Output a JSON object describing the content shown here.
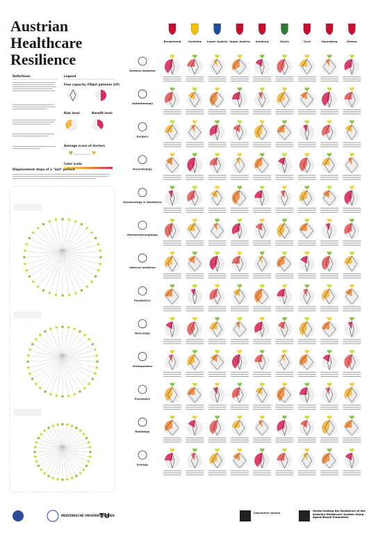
{
  "header": {
    "title": [
      "Austrian",
      "Healthcare",
      "Resilience"
    ]
  },
  "states": [
    "Burgenland",
    "Carinthia",
    "Lower Austria",
    "Upper Austria",
    "Salzburg",
    "Styria",
    "Tyrol",
    "Vorarlberg",
    "Vienna"
  ],
  "specialties": [
    "General medicine",
    "Ophtalmology",
    "Surgery",
    "Dermatology",
    "Gynaecology & Obstetrics",
    "Otorhinolaryngology",
    "Internal medicine",
    "Paediatrics",
    "Neurology",
    "Orthopaedics",
    "Psychiatry",
    "Radiology",
    "Urology"
  ],
  "sidebar": {
    "definitions": "Definitions",
    "legend": "Legend",
    "free_capacity": "Free capacity (FC)",
    "lost_patients": "Lost patients (LP)",
    "risk_level": "Risk level",
    "benefit_level": "Benefit level",
    "average_score": "Average score of doctors",
    "color_scale": "Color scale",
    "displacement": "Displacement steps of a \"lost\" patient"
  },
  "footer": {
    "logo_1": "MEDIZINISCHE UNIVERSITÄT WIEN",
    "logo_2": "TU",
    "interactive": "Interactive version",
    "paper_title": "Stress-testing the Resilience of the Austrian Healthcare System Using Agent-Based Simulation"
  }
}
